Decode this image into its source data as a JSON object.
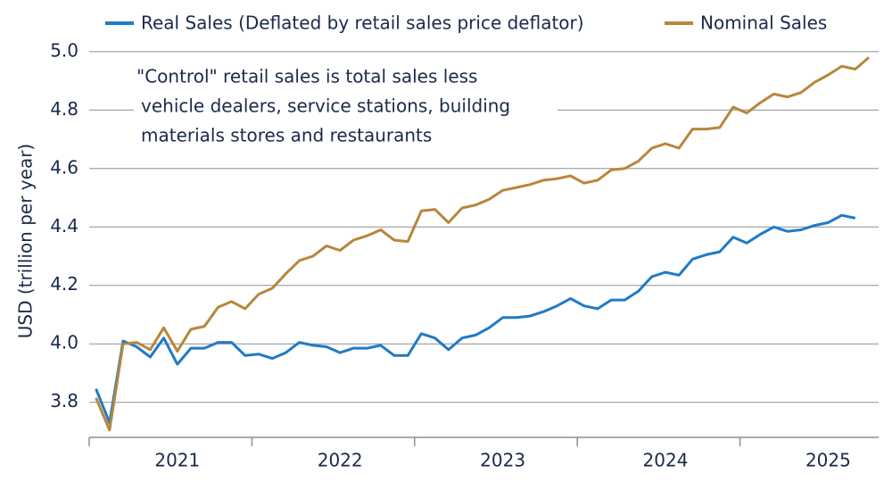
{
  "chart_data": {
    "type": "line",
    "y_label": "USD (trillion per year)",
    "annotation": [
      "\"Control\" retail sales is total sales less",
      "vehicle dealers, service stations, building",
      "materials stores and restaurants"
    ],
    "categories": [
      null,
      null,
      null,
      null,
      null,
      null,
      "2021",
      null,
      null,
      null,
      null,
      null,
      null,
      null,
      null,
      null,
      null,
      null,
      "2022",
      null,
      null,
      null,
      null,
      null,
      null,
      null,
      null,
      null,
      null,
      null,
      "2023",
      null,
      null,
      null,
      null,
      null,
      null,
      null,
      null,
      null,
      null,
      null,
      "2024",
      null,
      null,
      null,
      null,
      null,
      null,
      null,
      null,
      null,
      null,
      null,
      "2025",
      null,
      null,
      null
    ],
    "series": [
      {
        "name": "Real Sales (Deflated by retail sales price deflator)",
        "color": "#1f7ac7",
        "values": [
          3.846,
          3.73,
          4.01,
          3.99,
          3.955,
          4.02,
          3.93,
          3.985,
          3.985,
          4.005,
          4.005,
          3.96,
          3.965,
          3.95,
          3.97,
          4.005,
          3.995,
          3.99,
          3.97,
          3.985,
          3.985,
          3.995,
          3.96,
          3.96,
          4.035,
          4.02,
          3.98,
          4.02,
          4.03,
          4.055,
          4.09,
          4.09,
          4.095,
          4.11,
          4.13,
          4.155,
          4.13,
          4.12,
          4.15,
          4.15,
          4.18,
          4.23,
          4.245,
          4.235,
          4.29,
          4.305,
          4.315,
          4.365,
          4.345,
          4.375,
          4.4,
          4.385,
          4.39,
          4.405,
          4.415,
          4.44,
          4.43,
          null
        ]
      },
      {
        "name": "Nominal Sales",
        "color": "#b8863b",
        "values": [
          3.815,
          3.705,
          4.0,
          4.005,
          3.98,
          4.055,
          3.975,
          4.05,
          4.06,
          4.125,
          4.145,
          4.12,
          4.17,
          4.19,
          4.24,
          4.285,
          4.3,
          4.335,
          4.32,
          4.355,
          4.37,
          4.39,
          4.355,
          4.35,
          4.455,
          4.46,
          4.415,
          4.465,
          4.475,
          4.495,
          4.525,
          4.535,
          4.545,
          4.56,
          4.565,
          4.575,
          4.55,
          4.56,
          4.595,
          4.6,
          4.625,
          4.67,
          4.685,
          4.67,
          4.735,
          4.735,
          4.74,
          4.81,
          4.79,
          4.825,
          4.855,
          4.845,
          4.86,
          4.895,
          4.92,
          4.95,
          4.94,
          4.98
        ]
      }
    ],
    "ylim": [
      3.68,
      5.03
    ],
    "yticks": [
      {
        "value": 3.8,
        "label": "3.8"
      },
      {
        "value": 4.0,
        "label": "4.0"
      },
      {
        "value": 4.2,
        "label": "4.2"
      },
      {
        "value": 4.4,
        "label": "4.4"
      },
      {
        "value": 4.6,
        "label": "4.6"
      },
      {
        "value": 4.8,
        "label": "4.8"
      },
      {
        "value": 5.0,
        "label": "5.0"
      }
    ],
    "grid": true
  }
}
